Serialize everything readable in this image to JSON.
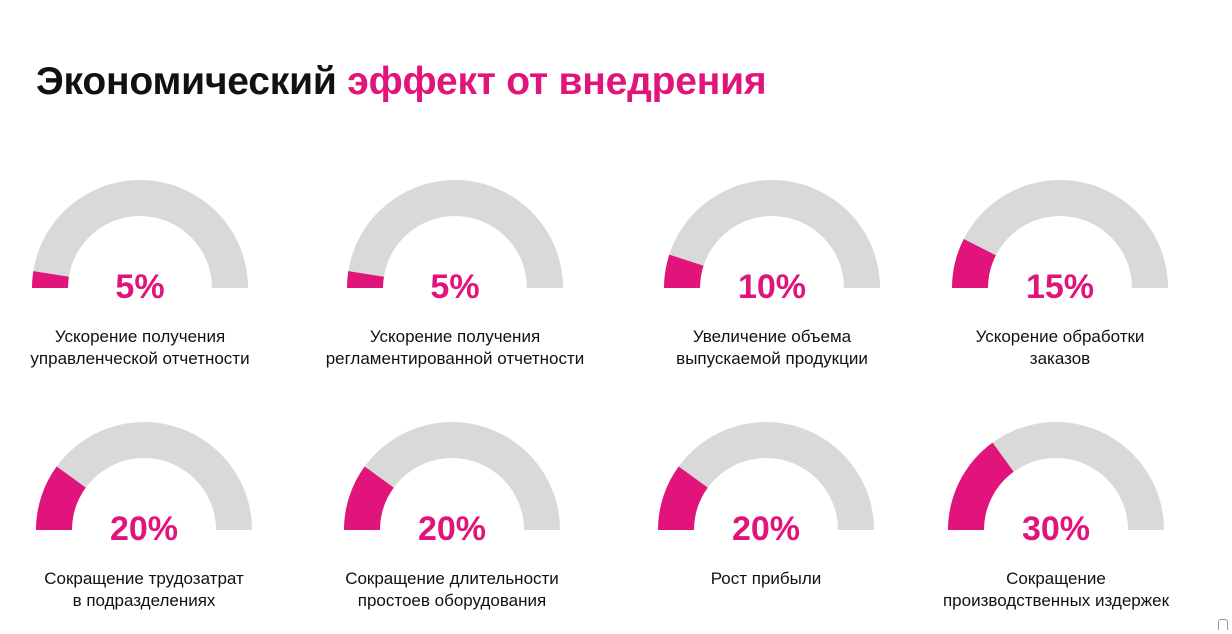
{
  "title": {
    "part1": "Экономический",
    "part2": "эффект от внедрения",
    "accent_color": "#e0147a"
  },
  "colors": {
    "accent": "#e0147a",
    "track": "#d9d9d9"
  },
  "chart_data": {
    "type": "gauge",
    "title": "Экономический эффект от внедрения",
    "items": [
      {
        "value_label": "5%",
        "value": 5,
        "label": "Ускорение получения\nуправленческой отчетности"
      },
      {
        "value_label": "5%",
        "value": 5,
        "label": "Ускорение получения\nрегламентированной отчетности"
      },
      {
        "value_label": "10%",
        "value": 10,
        "label": "Увеличение объема\nвыпускаемой продукции"
      },
      {
        "value_label": "15%",
        "value": 15,
        "label": "Ускорение обработки\nзаказов"
      },
      {
        "value_label": "20%",
        "value": 20,
        "label": "Сокращение трудозатрат\nв подразделениях"
      },
      {
        "value_label": "20%",
        "value": 20,
        "label": "Сокращение длительности\nпростоев оборудования"
      },
      {
        "value_label": "20%",
        "value": 20,
        "label": "Рост прибыли"
      },
      {
        "value_label": "30%",
        "value": 30,
        "label": "Сокращение\nпроизводственных издержек"
      }
    ]
  }
}
